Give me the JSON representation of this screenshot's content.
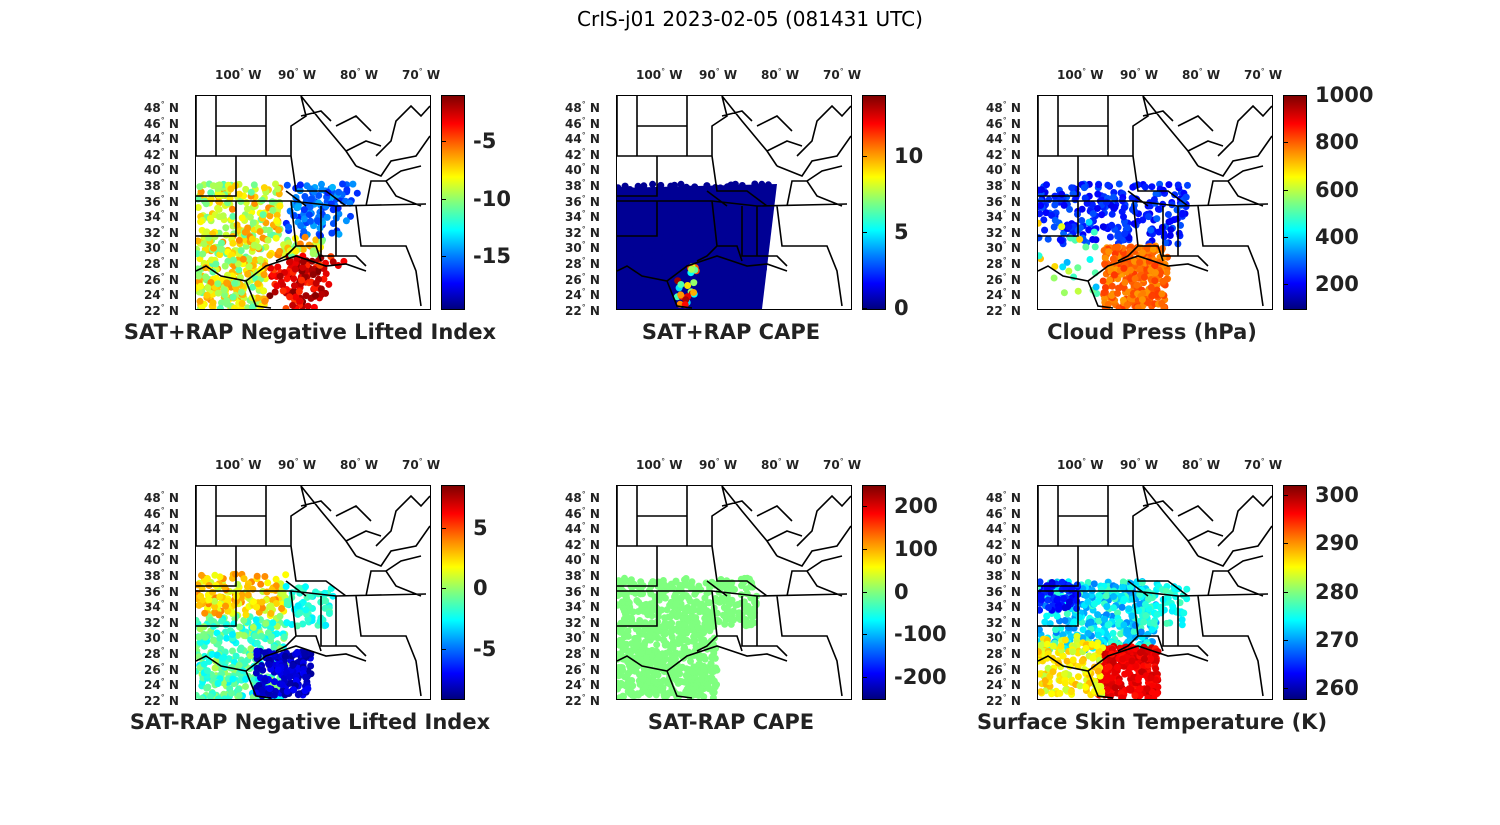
{
  "title": "CrIS-j01 2023-02-05 (081431 UTC)",
  "lon_labels": [
    "100",
    "90",
    "80",
    "70"
  ],
  "lon_hemisphere": "W",
  "lat_labels": [
    "48",
    "46",
    "44",
    "42",
    "40",
    "38",
    "36",
    "34",
    "32",
    "30",
    "28",
    "26",
    "24",
    "22"
  ],
  "lat_hemisphere": "N",
  "degree_symbol": "°",
  "colormap": "jet",
  "panels": [
    {
      "title": "SAT+RAP Negative Lifted Index",
      "colorbar": {
        "ticks": [
          "-5",
          "-10",
          "-15"
        ],
        "range": [
          -19.5,
          -1
        ]
      },
      "style": "lifted_plus"
    },
    {
      "title": "SAT+RAP CAPE",
      "colorbar": {
        "ticks": [
          "10",
          "5",
          "0"
        ],
        "range": [
          0,
          14
        ]
      },
      "style": "cape_plus"
    },
    {
      "title": "Cloud Press (hPa)",
      "colorbar": {
        "ticks": [
          "1000",
          "800",
          "600",
          "400",
          "200"
        ],
        "range": [
          100,
          1000
        ]
      },
      "style": "cloud"
    },
    {
      "title": "SAT-RAP Negative Lifted Index",
      "colorbar": {
        "ticks": [
          "5",
          "0",
          "-5"
        ],
        "range": [
          -9,
          8.5
        ]
      },
      "style": "lifted_minus"
    },
    {
      "title": "SAT-RAP CAPE",
      "colorbar": {
        "ticks": [
          "200",
          "100",
          "0",
          "-100",
          "-200"
        ],
        "range": [
          -250,
          250
        ]
      },
      "style": "cape_minus"
    },
    {
      "title": "Surface Skin Temperature (K)",
      "colorbar": {
        "ticks": [
          "300",
          "290",
          "280",
          "270",
          "260"
        ],
        "range": [
          258,
          302
        ]
      },
      "style": "skin"
    }
  ]
}
